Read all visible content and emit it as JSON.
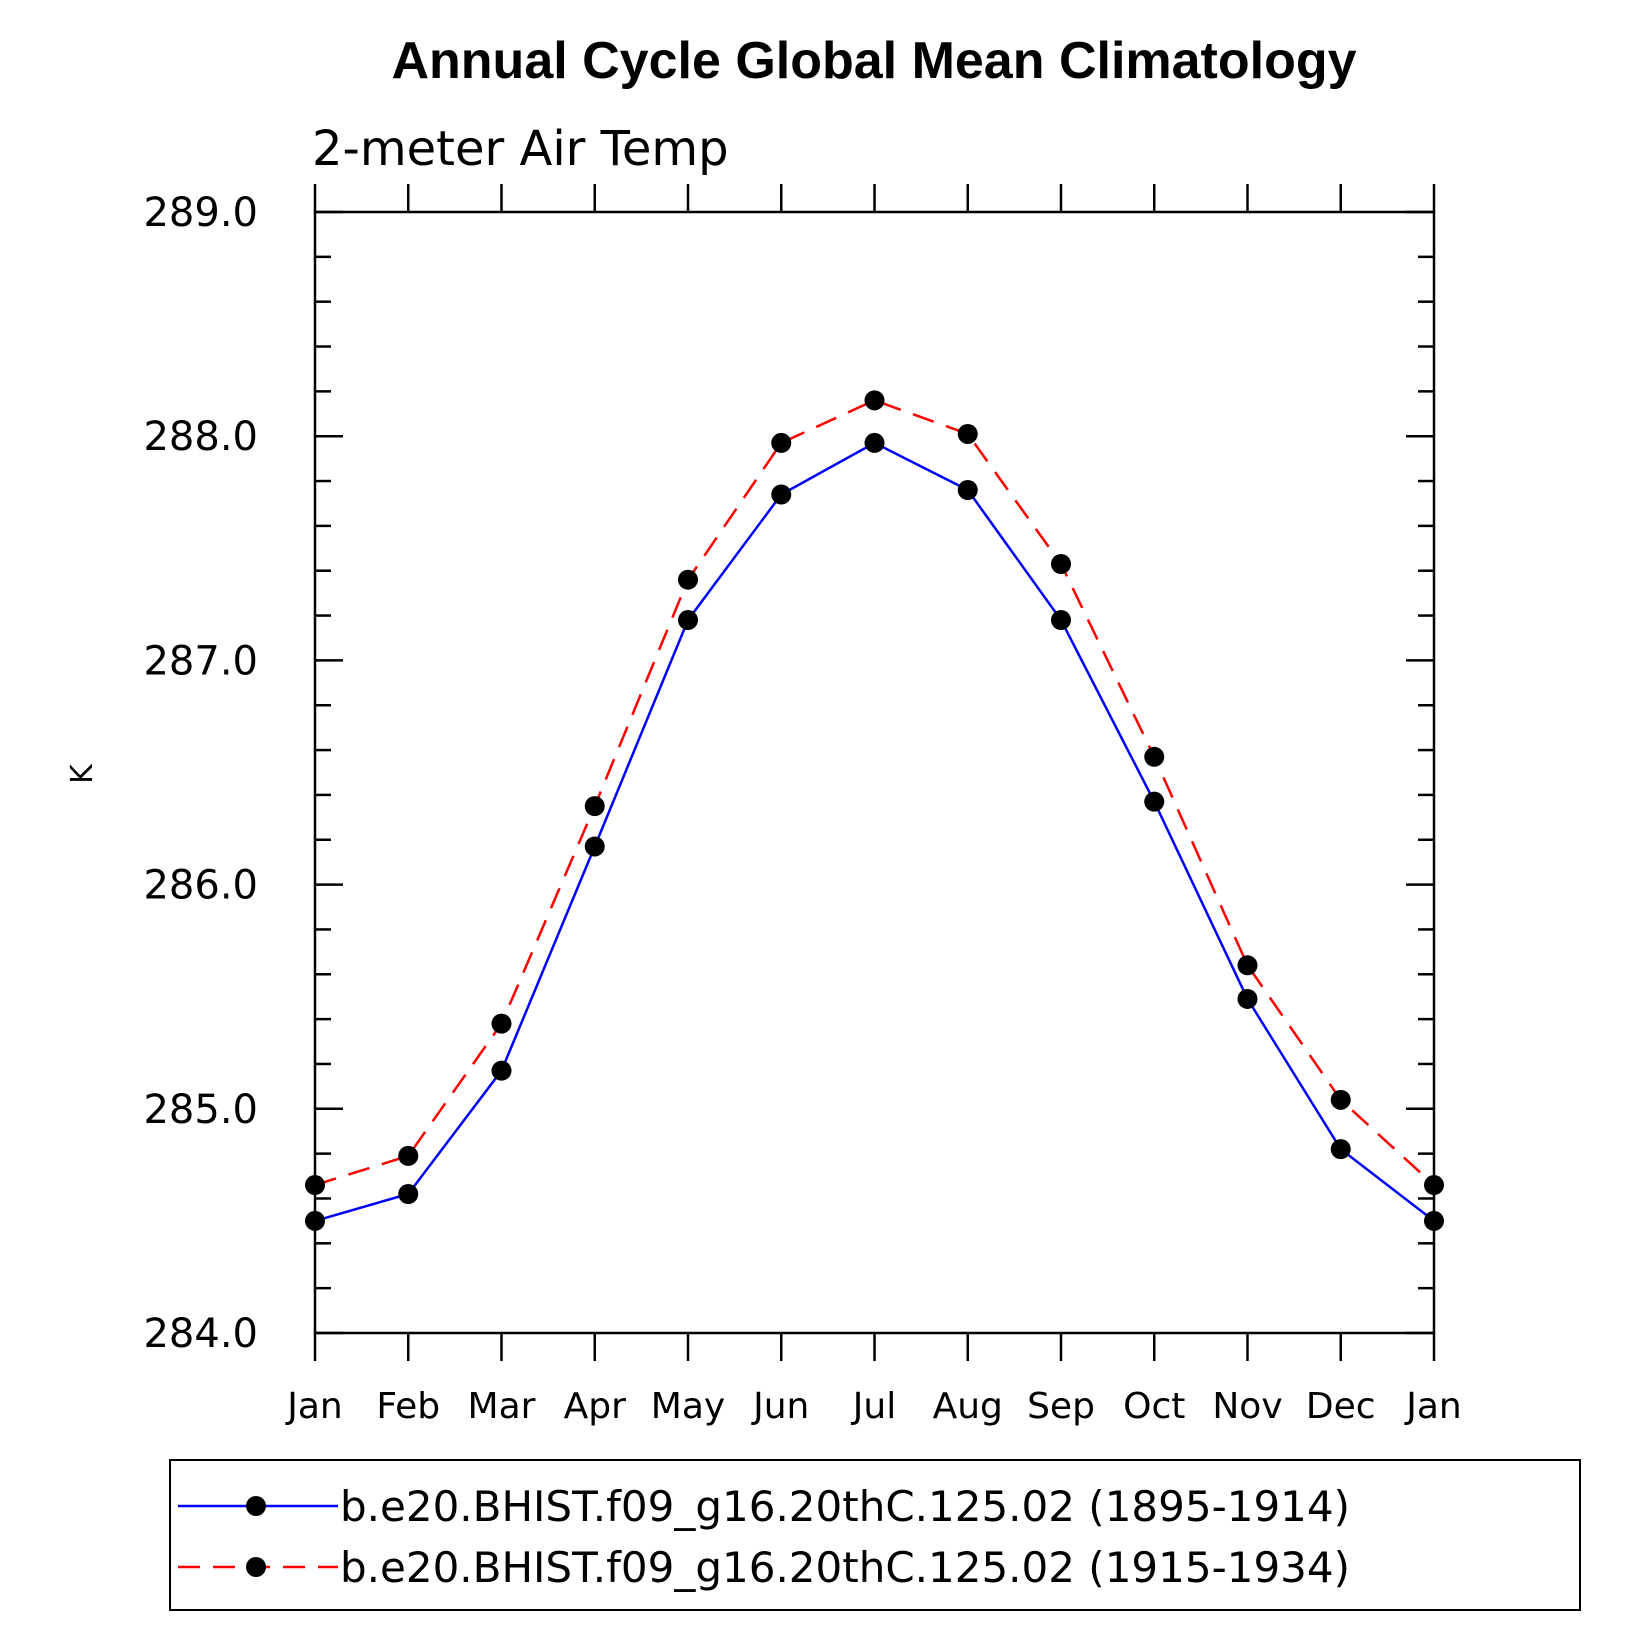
{
  "chart_data": {
    "type": "line",
    "title": "Annual Cycle Global Mean Climatology",
    "subtitle": "2-meter Air Temp",
    "xlabel": "",
    "ylabel": "K",
    "categories": [
      "Jan",
      "Feb",
      "Mar",
      "Apr",
      "May",
      "Jun",
      "Jul",
      "Aug",
      "Sep",
      "Oct",
      "Nov",
      "Dec",
      "Jan"
    ],
    "ylim": [
      284.0,
      289.0
    ],
    "yticks": [
      "284.0",
      "285.0",
      "286.0",
      "287.0",
      "288.0",
      "289.0"
    ],
    "grid": false,
    "legend_position": "bottom",
    "series": [
      {
        "name": "b.e20.BHIST.f09_g16.20thC.125.02 (1895-1914)",
        "color": "#0000ff",
        "dash": "solid",
        "marker": "filled-circle",
        "values": [
          284.5,
          284.62,
          285.17,
          286.17,
          287.18,
          287.74,
          287.97,
          287.76,
          287.18,
          286.37,
          285.49,
          284.82,
          284.5
        ]
      },
      {
        "name": "b.e20.BHIST.f09_g16.20thC.125.02 (1915-1934)",
        "color": "#ff0000",
        "dash": "dashed",
        "marker": "filled-circle",
        "values": [
          284.66,
          284.79,
          285.38,
          286.35,
          287.36,
          287.97,
          288.16,
          288.01,
          287.43,
          286.57,
          285.64,
          285.04,
          284.66
        ]
      }
    ]
  }
}
